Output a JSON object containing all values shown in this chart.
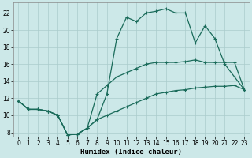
{
  "xlabel": "Humidex (Indice chaleur)",
  "bg_color": "#cce8e8",
  "grid_color": "#aacccc",
  "line_color": "#1a6b5a",
  "xlim": [
    -0.5,
    23.5
  ],
  "ylim": [
    7.5,
    23.2
  ],
  "xticks": [
    0,
    1,
    2,
    3,
    4,
    5,
    6,
    7,
    8,
    9,
    10,
    11,
    12,
    13,
    14,
    15,
    16,
    17,
    18,
    19,
    20,
    21,
    22,
    23
  ],
  "yticks": [
    8,
    10,
    12,
    14,
    16,
    18,
    20,
    22
  ],
  "line_upper_x": [
    0,
    1,
    2,
    3,
    4,
    5,
    6,
    7,
    8,
    9,
    10,
    11,
    12,
    13,
    14,
    15,
    16,
    17,
    18,
    19,
    20,
    21,
    22,
    23
  ],
  "line_upper_y": [
    11.7,
    10.7,
    10.7,
    10.5,
    10.0,
    7.7,
    7.8,
    8.5,
    9.5,
    12.5,
    19.0,
    21.5,
    21.0,
    22.0,
    22.2,
    22.5,
    22.0,
    22.0,
    18.5,
    20.5,
    19.0,
    16.0,
    14.5,
    13.0
  ],
  "line_mid_x": [
    0,
    1,
    2,
    3,
    4,
    5,
    6,
    7,
    8,
    9,
    10,
    11,
    12,
    13,
    14,
    15,
    16,
    17,
    18,
    19,
    20,
    21,
    22,
    23
  ],
  "line_mid_y": [
    11.7,
    10.7,
    10.7,
    10.5,
    10.0,
    7.7,
    7.8,
    8.5,
    12.5,
    13.5,
    14.5,
    15.0,
    15.5,
    16.0,
    16.2,
    16.2,
    16.2,
    16.3,
    16.5,
    16.2,
    16.2,
    16.2,
    16.2,
    13.0
  ],
  "line_lower_x": [
    0,
    1,
    2,
    3,
    4,
    5,
    6,
    7,
    8,
    9,
    10,
    11,
    12,
    13,
    14,
    15,
    16,
    17,
    18,
    19,
    20,
    21,
    22,
    23
  ],
  "line_lower_y": [
    11.7,
    10.7,
    10.7,
    10.5,
    10.0,
    7.7,
    7.8,
    8.5,
    9.5,
    10.0,
    10.5,
    11.0,
    11.5,
    12.0,
    12.5,
    12.7,
    12.9,
    13.0,
    13.2,
    13.3,
    13.4,
    13.4,
    13.5,
    13.0
  ]
}
